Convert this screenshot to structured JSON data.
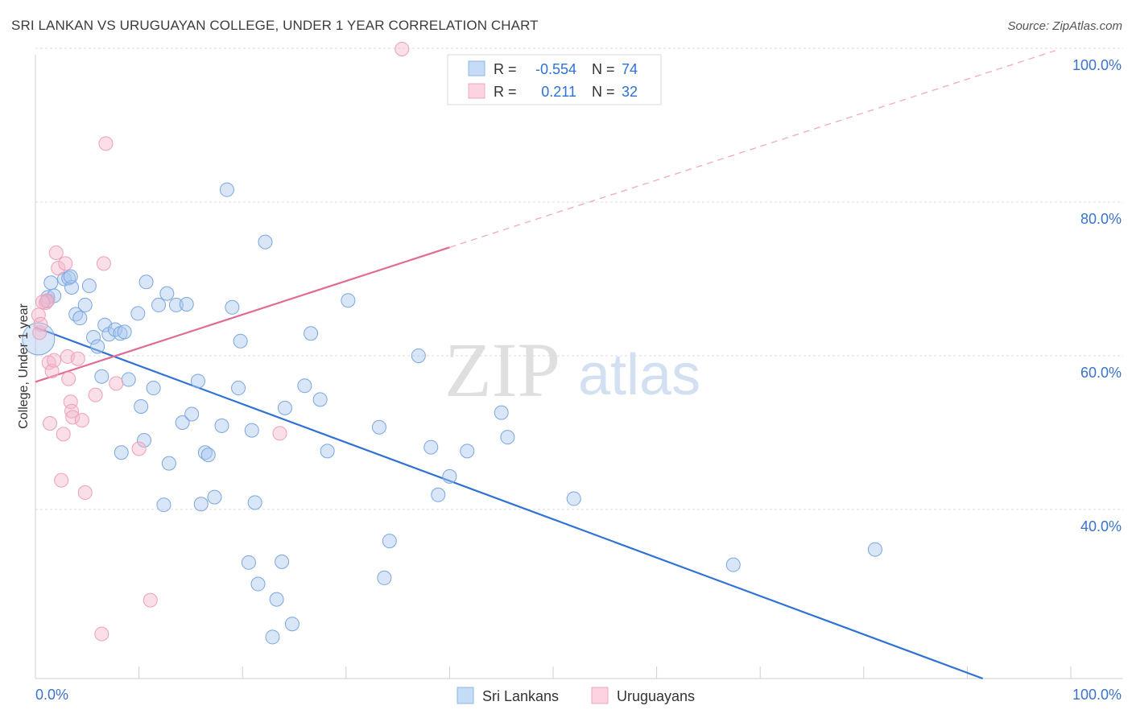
{
  "header": {
    "title": "SRI LANKAN VS URUGUAYAN COLLEGE, UNDER 1 YEAR CORRELATION CHART",
    "source": "Source: ZipAtlas.com"
  },
  "watermark": {
    "zip": "ZIP",
    "atlas": "atlas"
  },
  "legend_box": {
    "rows": [
      {
        "r_label": "R =",
        "r_value": "-0.554",
        "n_label": "N =",
        "n_value": "74",
        "color": "#a9c8f0"
      },
      {
        "r_label": "R =",
        "r_value": "0.211",
        "n_label": "N =",
        "n_value": "32",
        "color": "#f5b8cb"
      }
    ]
  },
  "bottom_legend": [
    {
      "label": "Sri Lankans",
      "color": "#a9c8f0"
    },
    {
      "label": "Uruguayans",
      "color": "#f5b8cb"
    }
  ],
  "chart_data": {
    "type": "scatter",
    "title": "SRI LANKAN VS URUGUAYAN COLLEGE, UNDER 1 YEAR CORRELATION CHART",
    "xlabel": "",
    "ylabel": "College, Under 1 year",
    "xlim": [
      0,
      100
    ],
    "ylim": [
      18,
      100
    ],
    "x_tick_labels": [
      "0.0%",
      "100.0%"
    ],
    "y_ticks": [
      40,
      60,
      80,
      100
    ],
    "y_tick_labels": [
      "40.0%",
      "60.0%",
      "80.0%",
      "100.0%"
    ],
    "grid": true,
    "legend_position": "top-center",
    "colors": {
      "sri_lankans": "#a9c8f0",
      "sri_lankans_line": "#2f72d4",
      "uruguayans": "#f5b8cb",
      "uruguayans_line": "#e06b94"
    },
    "series": [
      {
        "name": "Sri Lankans",
        "r": -0.554,
        "n": 74,
        "points": [
          [
            0.3,
            62.2
          ],
          [
            1.2,
            67.6
          ],
          [
            1.5,
            69.5
          ],
          [
            1.8,
            67.8
          ],
          [
            2.8,
            70.0
          ],
          [
            3.2,
            70.1
          ],
          [
            3.5,
            68.9
          ],
          [
            3.9,
            65.4
          ],
          [
            4.3,
            64.9
          ],
          [
            4.8,
            66.6
          ],
          [
            5.2,
            69.1
          ],
          [
            5.6,
            62.4
          ],
          [
            6.0,
            61.2
          ],
          [
            6.4,
            57.3
          ],
          [
            6.7,
            64.0
          ],
          [
            7.1,
            62.8
          ],
          [
            7.7,
            63.4
          ],
          [
            8.2,
            62.9
          ],
          [
            8.6,
            63.1
          ],
          [
            8.3,
            47.4
          ],
          [
            9.0,
            56.9
          ],
          [
            9.9,
            65.5
          ],
          [
            10.2,
            53.4
          ],
          [
            10.5,
            49.0
          ],
          [
            10.7,
            69.6
          ],
          [
            11.4,
            55.8
          ],
          [
            11.9,
            66.6
          ],
          [
            12.4,
            40.6
          ],
          [
            12.7,
            68.1
          ],
          [
            12.9,
            46.0
          ],
          [
            13.6,
            66.6
          ],
          [
            14.2,
            51.3
          ],
          [
            14.6,
            66.7
          ],
          [
            15.1,
            52.4
          ],
          [
            15.7,
            56.7
          ],
          [
            16.0,
            40.7
          ],
          [
            16.4,
            47.4
          ],
          [
            16.7,
            47.1
          ],
          [
            17.3,
            41.6
          ],
          [
            18.0,
            50.9
          ],
          [
            18.5,
            81.6
          ],
          [
            19.0,
            66.3
          ],
          [
            19.6,
            55.8
          ],
          [
            19.8,
            61.9
          ],
          [
            20.6,
            33.1
          ],
          [
            20.9,
            50.3
          ],
          [
            21.2,
            40.9
          ],
          [
            21.5,
            30.3
          ],
          [
            22.2,
            74.8
          ],
          [
            22.9,
            23.4
          ],
          [
            23.3,
            28.3
          ],
          [
            23.8,
            33.2
          ],
          [
            24.1,
            53.2
          ],
          [
            24.8,
            25.1
          ],
          [
            26.0,
            56.1
          ],
          [
            26.6,
            62.9
          ],
          [
            27.5,
            54.3
          ],
          [
            28.2,
            47.6
          ],
          [
            30.2,
            67.2
          ],
          [
            33.2,
            50.7
          ],
          [
            33.7,
            31.1
          ],
          [
            34.2,
            35.9
          ],
          [
            37.0,
            60.0
          ],
          [
            38.2,
            48.1
          ],
          [
            38.9,
            41.9
          ],
          [
            40.0,
            44.3
          ],
          [
            41.7,
            47.6
          ],
          [
            45.0,
            52.6
          ],
          [
            45.6,
            49.4
          ],
          [
            52.0,
            41.4
          ],
          [
            67.4,
            32.8
          ],
          [
            81.1,
            34.8
          ],
          [
            3.4,
            70.3
          ],
          [
            1.1,
            67.1
          ]
        ],
        "trendline": {
          "x": [
            0,
            91.5
          ],
          "y": [
            63.7,
            18.0
          ],
          "style": "solid"
        }
      },
      {
        "name": "Uruguayans",
        "r": 0.211,
        "n": 32,
        "points": [
          [
            0.3,
            65.3
          ],
          [
            0.4,
            63.0
          ],
          [
            0.5,
            64.1
          ],
          [
            1.0,
            66.9
          ],
          [
            1.2,
            67.2
          ],
          [
            1.3,
            59.1
          ],
          [
            1.4,
            51.2
          ],
          [
            1.6,
            58.0
          ],
          [
            1.8,
            59.4
          ],
          [
            2.0,
            73.4
          ],
          [
            2.2,
            71.4
          ],
          [
            2.5,
            43.8
          ],
          [
            2.7,
            49.8
          ],
          [
            2.9,
            72.0
          ],
          [
            3.1,
            59.9
          ],
          [
            3.2,
            57.0
          ],
          [
            3.4,
            54.0
          ],
          [
            3.5,
            52.8
          ],
          [
            3.6,
            52.0
          ],
          [
            4.1,
            59.6
          ],
          [
            4.5,
            51.6
          ],
          [
            4.8,
            42.2
          ],
          [
            5.8,
            54.9
          ],
          [
            6.4,
            23.8
          ],
          [
            6.6,
            72.0
          ],
          [
            6.8,
            87.6
          ],
          [
            7.8,
            56.4
          ],
          [
            10.0,
            47.9
          ],
          [
            11.1,
            28.2
          ],
          [
            23.6,
            49.9
          ],
          [
            35.4,
            99.9
          ],
          [
            0.7,
            67.0
          ]
        ],
        "trendline": {
          "x": [
            0,
            40.0
          ],
          "y": [
            56.6,
            74.1
          ],
          "style": "solid",
          "extension": {
            "x": [
              40.0,
              98.5
            ],
            "y": [
              74.1,
              99.7
            ],
            "style": "dashed"
          }
        }
      }
    ]
  }
}
